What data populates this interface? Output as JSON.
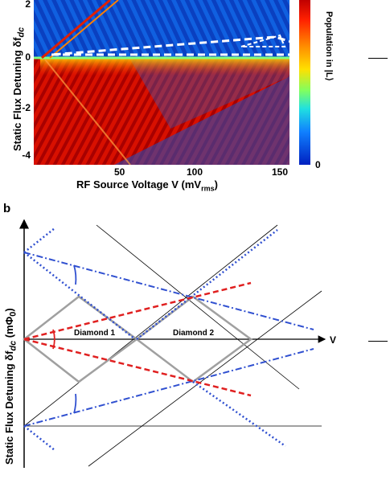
{
  "panel_a": {
    "y_label": "Static Flux Detuning δf",
    "y_label_sub": "dc",
    "x_label": "RF Source Voltage V (mV",
    "x_label_sub": "rms",
    "x_label_end": ")",
    "y_ticks": [
      "2",
      "0",
      "-2",
      "-4"
    ],
    "x_ticks": [
      "50",
      "100",
      "150"
    ],
    "colorbar_label": "Population in |L⟩",
    "colorbar_min": "0",
    "colors": {
      "high": "#c00000",
      "mid": "#80ff60",
      "low": "#0020c0"
    }
  },
  "panel_b": {
    "letter": "b",
    "y_label": "Static Flux Detuning δf",
    "y_label_sub": "dc",
    "y_label_end": " (mΦ",
    "y_label_sub2": "0",
    "y_label_close": ")",
    "axis_v": "V",
    "diamond1": "Diamond 1",
    "diamond2": "Diamond 2",
    "colors": {
      "red": "#e02020",
      "blue": "#3050d0",
      "gray": "#a0a0a0",
      "black": "#000000"
    }
  }
}
